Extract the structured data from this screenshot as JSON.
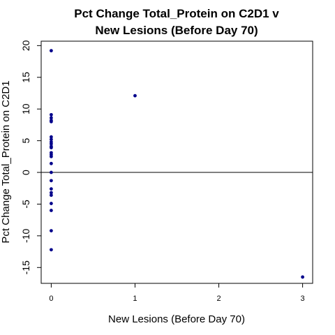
{
  "chart_data": {
    "type": "scatter",
    "title_lines": [
      "Pct Change Total_Protein on C2D1 v",
      "New Lesions (Before Day 70)"
    ],
    "xlabel": "New Lesions (Before Day 70)",
    "ylabel": "Pct Change Total_Protein on C2D1",
    "xlim": [
      -0.12,
      3.12
    ],
    "ylim": [
      -17.5,
      20.7
    ],
    "x_ticks": [
      0,
      1,
      2,
      3
    ],
    "x_tick_labels": [
      "0",
      "1",
      "2",
      "3"
    ],
    "y_ticks": [
      -15,
      -10,
      -5,
      0,
      5,
      10,
      15,
      20
    ],
    "y_tick_labels": [
      "-15",
      "-10",
      "-5",
      "0",
      "5",
      "10",
      "15",
      "20"
    ],
    "reference_line_y": 0,
    "point_color": "#00008b",
    "grid": false,
    "legend": "none",
    "points": [
      {
        "x": 0,
        "y": 19.2
      },
      {
        "x": 0,
        "y": 9.1
      },
      {
        "x": 0,
        "y": 8.6
      },
      {
        "x": 0,
        "y": 8.2
      },
      {
        "x": 0,
        "y": 8.0
      },
      {
        "x": 0,
        "y": 5.6
      },
      {
        "x": 0,
        "y": 5.2
      },
      {
        "x": 0,
        "y": 4.8
      },
      {
        "x": 0,
        "y": 4.5
      },
      {
        "x": 0,
        "y": 4.1
      },
      {
        "x": 0,
        "y": 3.9
      },
      {
        "x": 0,
        "y": 3.1
      },
      {
        "x": 0,
        "y": 2.8
      },
      {
        "x": 0,
        "y": 2.5
      },
      {
        "x": 0,
        "y": 1.4
      },
      {
        "x": 0,
        "y": 0.0
      },
      {
        "x": 0,
        "y": -1.3
      },
      {
        "x": 0,
        "y": -2.6
      },
      {
        "x": 0,
        "y": -3.2
      },
      {
        "x": 0,
        "y": -3.6
      },
      {
        "x": 0,
        "y": -4.9
      },
      {
        "x": 0,
        "y": -6.0
      },
      {
        "x": 0,
        "y": -9.2
      },
      {
        "x": 0,
        "y": -12.2
      },
      {
        "x": 1,
        "y": 12.1
      },
      {
        "x": 3,
        "y": -16.5
      }
    ]
  }
}
